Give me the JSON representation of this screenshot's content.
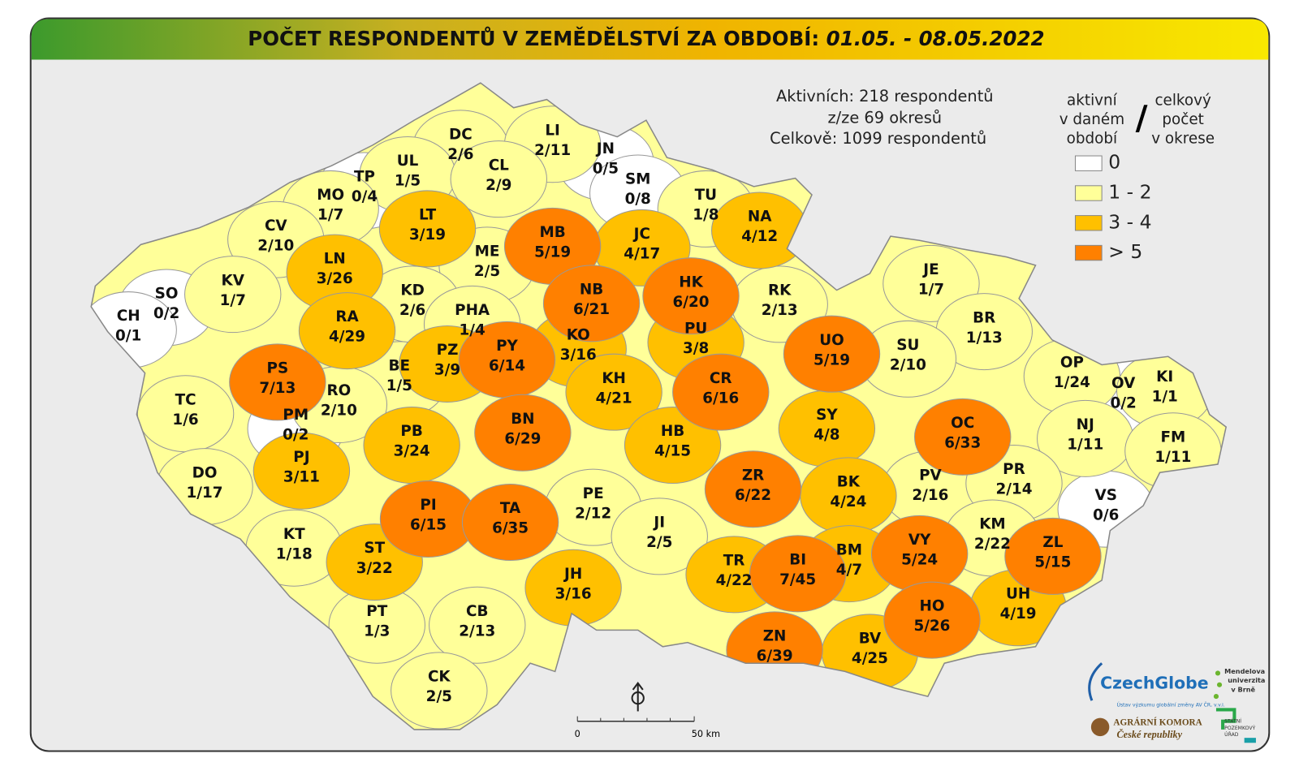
{
  "header": {
    "title": "POČET RESPONDENTŮ V ZEMĚDĚLSTVÍ ZA OBDOBÍ:",
    "period": "01.05. - 08.05.2022"
  },
  "summary": [
    "Aktivních: 218 respondentů",
    "z/ze 69 okresů",
    "Celkově: 1099 respondentů"
  ],
  "legend": {
    "left_header": [
      "aktivní",
      "v daném",
      "období"
    ],
    "separator": "/",
    "right_header": [
      "celkový",
      "počet",
      "v okrese"
    ],
    "entries": [
      {
        "label": "0",
        "color": "#ffffff"
      },
      {
        "label": "1 - 2",
        "color": "#ffff99"
      },
      {
        "label": "3 - 4",
        "color": "#ffc000"
      },
      {
        "label": "> 5",
        "color": "#ff8000"
      }
    ]
  },
  "districts": [
    {
      "code": "DC",
      "label": "2/6",
      "color": "#ffff99"
    },
    {
      "code": "LI",
      "label": "2/11",
      "color": "#ffff99"
    },
    {
      "code": "JN",
      "label": "0/5",
      "color": "#ffffff"
    },
    {
      "code": "UL",
      "label": "1/5",
      "color": "#ffff99"
    },
    {
      "code": "CL",
      "label": "2/9",
      "color": "#ffff99"
    },
    {
      "code": "TP",
      "label": "0/4",
      "color": "#ffffff"
    },
    {
      "code": "MO",
      "label": "1/7",
      "color": "#ffff99"
    },
    {
      "code": "SM",
      "label": "0/8",
      "color": "#ffffff"
    },
    {
      "code": "TU",
      "label": "1/8",
      "color": "#ffff99"
    },
    {
      "code": "NA",
      "label": "4/12",
      "color": "#ffc000"
    },
    {
      "code": "LT",
      "label": "3/19",
      "color": "#ffc000"
    },
    {
      "code": "MB",
      "label": "5/19",
      "color": "#ff8000"
    },
    {
      "code": "JC",
      "label": "4/17",
      "color": "#ffc000"
    },
    {
      "code": "CV",
      "label": "2/10",
      "color": "#ffff99"
    },
    {
      "code": "ME",
      "label": "2/5",
      "color": "#ffff99"
    },
    {
      "code": "LN",
      "label": "3/26",
      "color": "#ffc000"
    },
    {
      "code": "KV",
      "label": "1/7",
      "color": "#ffff99"
    },
    {
      "code": "SO",
      "label": "0/2",
      "color": "#ffffff"
    },
    {
      "code": "KD",
      "label": "2/6",
      "color": "#ffff99"
    },
    {
      "code": "NB",
      "label": "6/21",
      "color": "#ff8000"
    },
    {
      "code": "HK",
      "label": "6/20",
      "color": "#ff8000"
    },
    {
      "code": "RK",
      "label": "2/13",
      "color": "#ffff99"
    },
    {
      "code": "JE",
      "label": "1/7",
      "color": "#ffff99"
    },
    {
      "code": "CH",
      "label": "0/1",
      "color": "#ffffff"
    },
    {
      "code": "RA",
      "label": "4/29",
      "color": "#ffc000"
    },
    {
      "code": "PHA",
      "label": "1/4",
      "color": "#ffff99"
    },
    {
      "code": "BR",
      "label": "1/13",
      "color": "#ffff99"
    },
    {
      "code": "UO",
      "label": "5/19",
      "color": "#ff8000"
    },
    {
      "code": "PU",
      "label": "3/8",
      "color": "#ffc000"
    },
    {
      "code": "KO",
      "label": "3/16",
      "color": "#ffc000"
    },
    {
      "code": "PY",
      "label": "6/14",
      "color": "#ff8000"
    },
    {
      "code": "PZ",
      "label": "3/9",
      "color": "#ffc000"
    },
    {
      "code": "BE",
      "label": "1/5",
      "color": "#ffff99"
    },
    {
      "code": "PS",
      "label": "7/13",
      "color": "#ff8000"
    },
    {
      "code": "SU",
      "label": "2/10",
      "color": "#ffff99"
    },
    {
      "code": "OP",
      "label": "1/24",
      "color": "#ffff99"
    },
    {
      "code": "KI",
      "label": "1/1",
      "color": "#ffff99"
    },
    {
      "code": "OV",
      "label": "0/2",
      "color": "#ffffff"
    },
    {
      "code": "TC",
      "label": "1/6",
      "color": "#ffff99"
    },
    {
      "code": "RO",
      "label": "2/10",
      "color": "#ffff99"
    },
    {
      "code": "KH",
      "label": "4/21",
      "color": "#ffc000"
    },
    {
      "code": "CR",
      "label": "6/16",
      "color": "#ff8000"
    },
    {
      "code": "SY",
      "label": "4/8",
      "color": "#ffc000"
    },
    {
      "code": "BN",
      "label": "6/29",
      "color": "#ff8000"
    },
    {
      "code": "OC",
      "label": "6/33",
      "color": "#ff8000"
    },
    {
      "code": "PM",
      "label": "0/2",
      "color": "#ffffff"
    },
    {
      "code": "NJ",
      "label": "1/11",
      "color": "#ffff99"
    },
    {
      "code": "FM",
      "label": "1/11",
      "color": "#ffff99"
    },
    {
      "code": "PB",
      "label": "3/24",
      "color": "#ffc000"
    },
    {
      "code": "HB",
      "label": "4/15",
      "color": "#ffc000"
    },
    {
      "code": "DO",
      "label": "1/17",
      "color": "#ffff99"
    },
    {
      "code": "PJ",
      "label": "3/11",
      "color": "#ffc000"
    },
    {
      "code": "ZR",
      "label": "6/22",
      "color": "#ff8000"
    },
    {
      "code": "BK",
      "label": "4/24",
      "color": "#ffc000"
    },
    {
      "code": "PV",
      "label": "2/16",
      "color": "#ffff99"
    },
    {
      "code": "PR",
      "label": "2/14",
      "color": "#ffff99"
    },
    {
      "code": "VS",
      "label": "0/6",
      "color": "#ffffff"
    },
    {
      "code": "PE",
      "label": "2/12",
      "color": "#ffff99"
    },
    {
      "code": "PI",
      "label": "6/15",
      "color": "#ff8000"
    },
    {
      "code": "TA",
      "label": "6/35",
      "color": "#ff8000"
    },
    {
      "code": "JI",
      "label": "2/5",
      "color": "#ffff99"
    },
    {
      "code": "KM",
      "label": "2/22",
      "color": "#ffff99"
    },
    {
      "code": "ZL",
      "label": "5/15",
      "color": "#ff8000"
    },
    {
      "code": "KT",
      "label": "1/18",
      "color": "#ffff99"
    },
    {
      "code": "ST",
      "label": "3/22",
      "color": "#ffc000"
    },
    {
      "code": "VY",
      "label": "5/24",
      "color": "#ff8000"
    },
    {
      "code": "BI",
      "label": "7/45",
      "color": "#ff8000"
    },
    {
      "code": "BM",
      "label": "4/7",
      "color": "#ffc000"
    },
    {
      "code": "TR",
      "label": "4/22",
      "color": "#ffc000"
    },
    {
      "code": "JH",
      "label": "3/16",
      "color": "#ffc000"
    },
    {
      "code": "UH",
      "label": "4/19",
      "color": "#ffc000"
    },
    {
      "code": "HO",
      "label": "5/26",
      "color": "#ff8000"
    },
    {
      "code": "PT",
      "label": "1/3",
      "color": "#ffff99"
    },
    {
      "code": "CB",
      "label": "2/13",
      "color": "#ffff99"
    },
    {
      "code": "ZN",
      "label": "6/39",
      "color": "#ff8000"
    },
    {
      "code": "BV",
      "label": "4/25",
      "color": "#ffc000"
    },
    {
      "code": "CK",
      "label": "2/5",
      "color": "#ffff99"
    }
  ],
  "scale_bar": {
    "start": "0",
    "end": "50 km"
  },
  "logos": {
    "czechglobe": "CzechGlobe",
    "czechglobe_sub": "Ústav výzkumu globální změny AV ČR, v.v.i.",
    "mendelu": [
      "Mendelova",
      "univerzita",
      "v Brně"
    ],
    "agrarni": [
      "AGRÁRNÍ KOMORA",
      "České republiky"
    ],
    "spu": [
      "STÁTNÍ",
      "POZEMKOVÝ",
      "ÚŘAD"
    ]
  }
}
